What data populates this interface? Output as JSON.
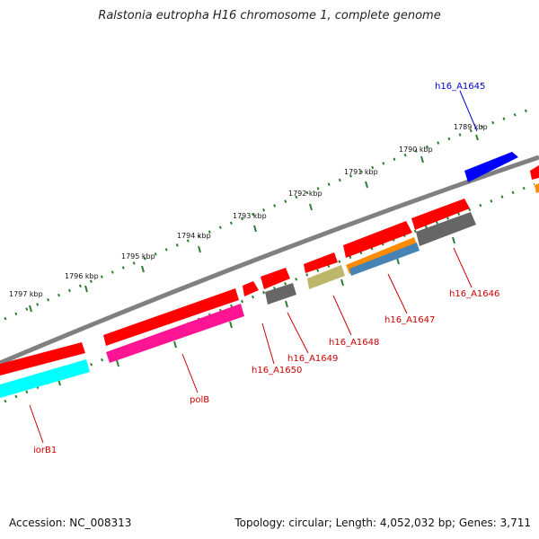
{
  "title": "Ralstonia eutropha H16 chromosome 1, complete genome",
  "accession": "Accession: NC_008313",
  "stats": "Topology: circular; Length: 4,052,032 bp; Genes: 3,711",
  "ticks": [
    "1789 kbp",
    "1790 kbp",
    "1791 kbp",
    "1792 kbp",
    "1793 kbp",
    "1794 kbp",
    "1795 kbp",
    "1796 kbp",
    "1797 kbp"
  ],
  "labels": {
    "h16_A1645": "h16_A1645",
    "h16_A1646": "h16_A1646",
    "h16_A1647": "h16_A1647",
    "h16_A1648": "h16_A1648",
    "h16_A1649": "h16_A1649",
    "h16_A1650": "h16_A1650",
    "polB": "polB",
    "iorB1": "iorB1"
  },
  "colors": {
    "backbone": "#808080",
    "tick_dots": "#2e7d32",
    "gene_red": "#ff0000",
    "gene_blue": "#0000ff",
    "gene_gray": "#666666",
    "gene_magenta": "#ff1493",
    "gene_cyan": "#00ffff",
    "gene_orange": "#ff8c00",
    "gene_steelblue": "#4682b4",
    "gene_khaki": "#bdb76b"
  }
}
